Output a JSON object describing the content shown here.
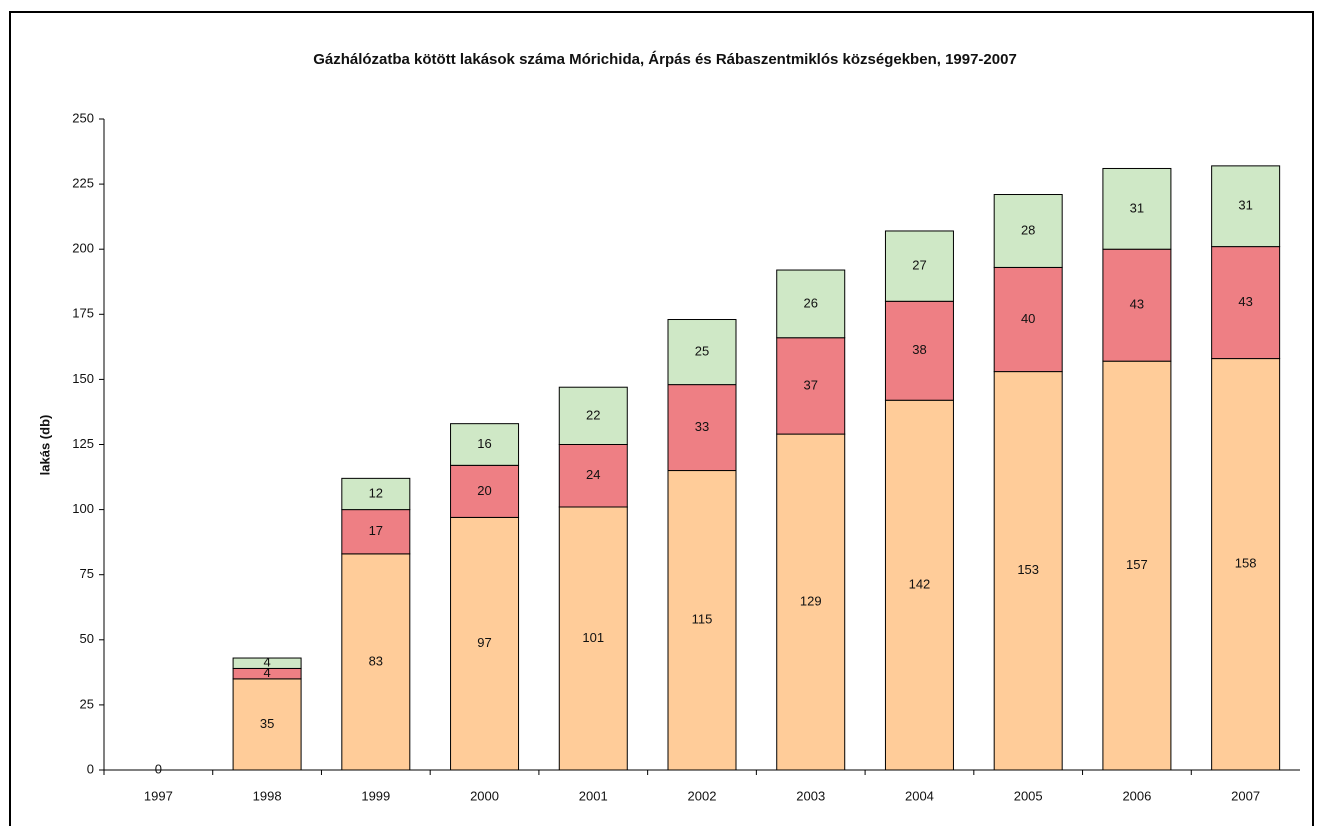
{
  "chart_data": {
    "type": "stacked_bar",
    "title": "Gázhálózatba kötött lakások száma Mórichida, Árpás és Rábaszentmiklós községekben, 1997-2007",
    "ylabel": "lakás (db)",
    "categories": [
      "1997",
      "1998",
      "1999",
      "2000",
      "2001",
      "2002",
      "2003",
      "2004",
      "2005",
      "2006",
      "2007"
    ],
    "series": [
      {
        "color": "#ffcc99",
        "values": [
          0,
          35,
          83,
          97,
          101,
          115,
          129,
          142,
          153,
          157,
          158
        ]
      },
      {
        "color": "#ee7f84",
        "values": [
          null,
          4,
          17,
          20,
          24,
          33,
          37,
          38,
          40,
          43,
          43
        ]
      },
      {
        "color": "#cfe8c6",
        "values": [
          null,
          4,
          12,
          16,
          22,
          25,
          26,
          27,
          28,
          31,
          31
        ]
      }
    ],
    "ylim": [
      0,
      250
    ],
    "yticks": [
      0,
      25,
      50,
      75,
      100,
      125,
      150,
      175,
      200,
      225,
      250
    ],
    "grid": false
  }
}
